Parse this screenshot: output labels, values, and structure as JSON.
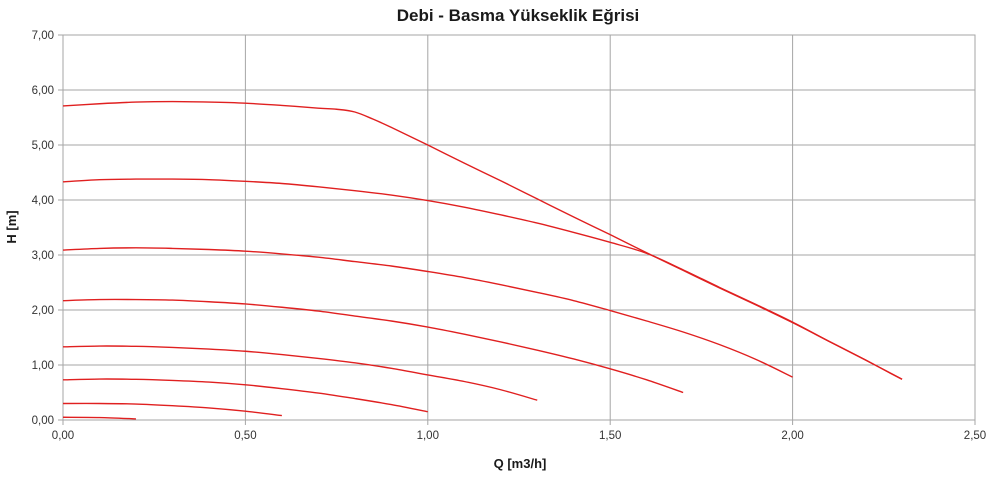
{
  "chart_data": {
    "type": "line",
    "title": "Debi - Basma Yükseklik Eğrisi",
    "xlabel": "Q [m3/h]",
    "ylabel": "H [m]",
    "xlim": [
      0,
      2.5
    ],
    "ylim": [
      0,
      7
    ],
    "x_ticks": [
      "0,00",
      "0,50",
      "1,00",
      "1,50",
      "2,00",
      "2,50"
    ],
    "y_ticks": [
      "0,00",
      "1,00",
      "2,00",
      "3,00",
      "4,00",
      "5,00",
      "6,00",
      "7,00"
    ],
    "grid": true,
    "legend": "none",
    "series_color": "#e02020",
    "series": [
      {
        "points": [
          [
            0,
            0.05
          ],
          [
            0.1,
            0.045
          ],
          [
            0.2,
            0.02
          ]
        ]
      },
      {
        "points": [
          [
            0,
            0.3
          ],
          [
            0.1,
            0.3
          ],
          [
            0.2,
            0.29
          ],
          [
            0.3,
            0.26
          ],
          [
            0.4,
            0.22
          ],
          [
            0.5,
            0.16
          ],
          [
            0.6,
            0.08
          ]
        ]
      },
      {
        "points": [
          [
            0,
            0.73
          ],
          [
            0.1,
            0.745
          ],
          [
            0.2,
            0.74
          ],
          [
            0.3,
            0.72
          ],
          [
            0.4,
            0.69
          ],
          [
            0.5,
            0.64
          ],
          [
            0.6,
            0.57
          ],
          [
            0.7,
            0.49
          ],
          [
            0.8,
            0.39
          ],
          [
            0.9,
            0.28
          ],
          [
            1.0,
            0.15
          ]
        ]
      },
      {
        "points": [
          [
            0,
            1.33
          ],
          [
            0.1,
            1.345
          ],
          [
            0.2,
            1.34
          ],
          [
            0.3,
            1.32
          ],
          [
            0.4,
            1.29
          ],
          [
            0.5,
            1.25
          ],
          [
            0.6,
            1.19
          ],
          [
            0.7,
            1.12
          ],
          [
            0.8,
            1.04
          ],
          [
            0.9,
            0.94
          ],
          [
            1.0,
            0.82
          ],
          [
            1.1,
            0.7
          ],
          [
            1.2,
            0.55
          ],
          [
            1.3,
            0.36
          ]
        ]
      },
      {
        "points": [
          [
            0,
            2.17
          ],
          [
            0.1,
            2.19
          ],
          [
            0.2,
            2.19
          ],
          [
            0.3,
            2.18
          ],
          [
            0.4,
            2.15
          ],
          [
            0.5,
            2.11
          ],
          [
            0.6,
            2.05
          ],
          [
            0.7,
            1.98
          ],
          [
            0.8,
            1.89
          ],
          [
            0.9,
            1.8
          ],
          [
            1.0,
            1.69
          ],
          [
            1.1,
            1.56
          ],
          [
            1.2,
            1.42
          ],
          [
            1.3,
            1.27
          ],
          [
            1.4,
            1.11
          ],
          [
            1.5,
            0.93
          ],
          [
            1.6,
            0.73
          ],
          [
            1.7,
            0.5
          ]
        ]
      },
      {
        "points": [
          [
            0,
            3.09
          ],
          [
            0.1,
            3.12
          ],
          [
            0.2,
            3.13
          ],
          [
            0.3,
            3.12
          ],
          [
            0.4,
            3.1
          ],
          [
            0.5,
            3.07
          ],
          [
            0.6,
            3.02
          ],
          [
            0.7,
            2.96
          ],
          [
            0.8,
            2.88
          ],
          [
            0.9,
            2.8
          ],
          [
            1.0,
            2.7
          ],
          [
            1.1,
            2.59
          ],
          [
            1.2,
            2.46
          ],
          [
            1.3,
            2.32
          ],
          [
            1.4,
            2.17
          ],
          [
            1.5,
            1.99
          ],
          [
            1.6,
            1.8
          ],
          [
            1.7,
            1.6
          ],
          [
            1.8,
            1.37
          ],
          [
            1.9,
            1.1
          ],
          [
            2.0,
            0.78
          ]
        ]
      },
      {
        "points": [
          [
            0,
            4.33
          ],
          [
            0.1,
            4.37
          ],
          [
            0.2,
            4.38
          ],
          [
            0.3,
            4.38
          ],
          [
            0.4,
            4.37
          ],
          [
            0.5,
            4.34
          ],
          [
            0.6,
            4.3
          ],
          [
            0.7,
            4.24
          ],
          [
            0.8,
            4.17
          ],
          [
            0.9,
            4.09
          ],
          [
            1.0,
            3.99
          ],
          [
            1.1,
            3.87
          ],
          [
            1.2,
            3.73
          ],
          [
            1.3,
            3.58
          ],
          [
            1.4,
            3.41
          ],
          [
            1.5,
            3.23
          ],
          [
            1.6,
            3.03
          ],
          [
            1.7,
            2.73
          ],
          [
            1.8,
            2.41
          ],
          [
            1.9,
            2.1
          ],
          [
            2.0,
            1.78
          ],
          [
            2.1,
            1.43
          ],
          [
            2.2,
            1.09
          ],
          [
            2.3,
            0.74
          ]
        ]
      },
      {
        "points": [
          [
            0,
            5.71
          ],
          [
            0.1,
            5.75
          ],
          [
            0.2,
            5.78
          ],
          [
            0.3,
            5.79
          ],
          [
            0.4,
            5.78
          ],
          [
            0.5,
            5.76
          ],
          [
            0.6,
            5.72
          ],
          [
            0.7,
            5.67
          ],
          [
            0.75,
            5.65
          ],
          [
            0.8,
            5.6
          ],
          [
            0.85,
            5.47
          ],
          [
            0.9,
            5.32
          ],
          [
            1.0,
            5.0
          ],
          [
            1.1,
            4.67
          ],
          [
            1.2,
            4.35
          ],
          [
            1.3,
            4.02
          ],
          [
            1.4,
            3.69
          ],
          [
            1.5,
            3.37
          ],
          [
            1.6,
            3.04
          ],
          [
            1.7,
            2.72
          ],
          [
            1.8,
            2.4
          ],
          [
            1.9,
            2.09
          ],
          [
            2.0,
            1.77
          ],
          [
            2.1,
            1.43
          ],
          [
            2.2,
            1.09
          ],
          [
            2.3,
            0.74
          ]
        ]
      }
    ]
  }
}
